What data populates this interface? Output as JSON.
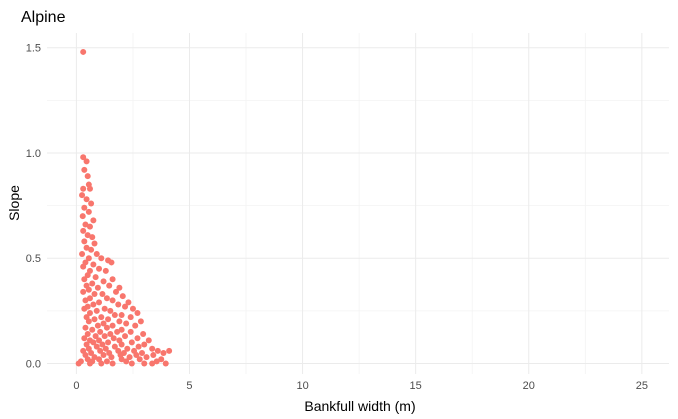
{
  "chart_data": {
    "type": "scatter",
    "title": "Alpine",
    "xlabel": "Bankfull width (m)",
    "ylabel": "Slope",
    "xlim": [
      -1.3,
      26.2
    ],
    "ylim": [
      -0.05,
      1.57
    ],
    "xticks": [
      0,
      5,
      10,
      15,
      20,
      25
    ],
    "yticks": [
      0.0,
      0.5,
      1.0,
      1.5
    ],
    "xtick_labels": [
      "0",
      "5",
      "10",
      "15",
      "20",
      "25"
    ],
    "ytick_labels": [
      "0.0",
      "0.5",
      "1.0",
      "1.5"
    ],
    "grid": true,
    "legend": "none",
    "point_color": "#F8766D",
    "points": [
      [
        0.3,
        1.48
      ],
      [
        0.3,
        0.98
      ],
      [
        0.45,
        0.96
      ],
      [
        0.35,
        0.92
      ],
      [
        0.5,
        0.89
      ],
      [
        0.55,
        0.85
      ],
      [
        0.3,
        0.83
      ],
      [
        0.6,
        0.83
      ],
      [
        0.25,
        0.8
      ],
      [
        0.45,
        0.78
      ],
      [
        0.65,
        0.76
      ],
      [
        0.35,
        0.74
      ],
      [
        0.55,
        0.72
      ],
      [
        0.28,
        0.7
      ],
      [
        0.75,
        0.68
      ],
      [
        0.4,
        0.66
      ],
      [
        0.6,
        0.65
      ],
      [
        0.3,
        0.63
      ],
      [
        0.5,
        0.61
      ],
      [
        0.7,
        0.6
      ],
      [
        0.35,
        0.58
      ],
      [
        0.8,
        0.57
      ],
      [
        0.45,
        0.55
      ],
      [
        0.65,
        0.54
      ],
      [
        0.25,
        0.52
      ],
      [
        0.9,
        0.52
      ],
      [
        0.55,
        0.5
      ],
      [
        1.1,
        0.5
      ],
      [
        0.4,
        0.48
      ],
      [
        0.75,
        0.47
      ],
      [
        1.4,
        0.49
      ],
      [
        1.55,
        0.48
      ],
      [
        0.3,
        0.46
      ],
      [
        1.0,
        0.45
      ],
      [
        0.6,
        0.44
      ],
      [
        1.3,
        0.44
      ],
      [
        0.5,
        0.42
      ],
      [
        0.85,
        0.41
      ],
      [
        1.6,
        0.4
      ],
      [
        0.35,
        0.4
      ],
      [
        1.2,
        0.39
      ],
      [
        0.7,
        0.38
      ],
      [
        0.45,
        0.37
      ],
      [
        1.45,
        0.37
      ],
      [
        1.9,
        0.36
      ],
      [
        0.95,
        0.36
      ],
      [
        0.55,
        0.35
      ],
      [
        1.75,
        0.34
      ],
      [
        0.3,
        0.34
      ],
      [
        1.15,
        0.33
      ],
      [
        0.8,
        0.33
      ],
      [
        2.05,
        0.32
      ],
      [
        0.6,
        0.31
      ],
      [
        1.35,
        0.31
      ],
      [
        1.6,
        0.3
      ],
      [
        0.4,
        0.3
      ],
      [
        2.3,
        0.29
      ],
      [
        1.0,
        0.29
      ],
      [
        0.75,
        0.28
      ],
      [
        1.85,
        0.28
      ],
      [
        0.5,
        0.27
      ],
      [
        2.15,
        0.27
      ],
      [
        1.25,
        0.26
      ],
      [
        2.5,
        0.26
      ],
      [
        0.35,
        0.26
      ],
      [
        1.5,
        0.25
      ],
      [
        0.9,
        0.25
      ],
      [
        2.7,
        0.24
      ],
      [
        0.6,
        0.24
      ],
      [
        1.7,
        0.23
      ],
      [
        2.0,
        0.23
      ],
      [
        1.1,
        0.22
      ],
      [
        0.45,
        0.22
      ],
      [
        2.4,
        0.22
      ],
      [
        1.4,
        0.21
      ],
      [
        0.8,
        0.21
      ],
      [
        2.85,
        0.2
      ],
      [
        1.9,
        0.2
      ],
      [
        0.55,
        0.2
      ],
      [
        1.2,
        0.19
      ],
      [
        2.2,
        0.19
      ],
      [
        0.95,
        0.18
      ],
      [
        1.6,
        0.18
      ],
      [
        2.6,
        0.18
      ],
      [
        0.4,
        0.17
      ],
      [
        1.35,
        0.17
      ],
      [
        2.0,
        0.16
      ],
      [
        0.7,
        0.16
      ],
      [
        1.05,
        0.15
      ],
      [
        1.8,
        0.15
      ],
      [
        2.4,
        0.15
      ],
      [
        0.5,
        0.14
      ],
      [
        1.5,
        0.14
      ],
      [
        2.95,
        0.14
      ],
      [
        0.85,
        0.13
      ],
      [
        1.25,
        0.13
      ],
      [
        2.15,
        0.13
      ],
      [
        0.35,
        0.12
      ],
      [
        1.65,
        0.12
      ],
      [
        2.7,
        0.12
      ],
      [
        1.0,
        0.11
      ],
      [
        0.6,
        0.11
      ],
      [
        1.9,
        0.11
      ],
      [
        3.2,
        0.11
      ],
      [
        1.4,
        0.1
      ],
      [
        0.75,
        0.1
      ],
      [
        2.45,
        0.1
      ],
      [
        0.45,
        0.09
      ],
      [
        1.15,
        0.09
      ],
      [
        2.0,
        0.09
      ],
      [
        3.0,
        0.09
      ],
      [
        0.9,
        0.08
      ],
      [
        1.7,
        0.08
      ],
      [
        2.75,
        0.08
      ],
      [
        0.55,
        0.07
      ],
      [
        1.3,
        0.07
      ],
      [
        2.25,
        0.07
      ],
      [
        3.35,
        0.07
      ],
      [
        0.3,
        0.06
      ],
      [
        1.05,
        0.06
      ],
      [
        1.85,
        0.06
      ],
      [
        2.55,
        0.06
      ],
      [
        3.6,
        0.06
      ],
      [
        4.1,
        0.06
      ],
      [
        0.65,
        0.05
      ],
      [
        1.45,
        0.05
      ],
      [
        2.1,
        0.05
      ],
      [
        2.9,
        0.05
      ],
      [
        3.85,
        0.05
      ],
      [
        0.4,
        0.04
      ],
      [
        1.2,
        0.04
      ],
      [
        1.95,
        0.04
      ],
      [
        2.65,
        0.04
      ],
      [
        3.4,
        0.04
      ],
      [
        0.8,
        0.03
      ],
      [
        1.55,
        0.03
      ],
      [
        2.35,
        0.03
      ],
      [
        3.1,
        0.03
      ],
      [
        3.75,
        0.02
      ],
      [
        0.5,
        0.02
      ],
      [
        1.0,
        0.02
      ],
      [
        2.0,
        0.02
      ],
      [
        2.8,
        0.02
      ],
      [
        3.55,
        0.01
      ],
      [
        0.2,
        0.01
      ],
      [
        0.7,
        0.01
      ],
      [
        1.35,
        0.01
      ],
      [
        2.2,
        0.01
      ],
      [
        3.0,
        0.0
      ],
      [
        0.1,
        0.0
      ],
      [
        0.6,
        0.0
      ],
      [
        1.1,
        0.0
      ],
      [
        1.6,
        0.0
      ],
      [
        2.45,
        0.0
      ],
      [
        3.35,
        0.0
      ],
      [
        3.95,
        0.0
      ]
    ]
  }
}
